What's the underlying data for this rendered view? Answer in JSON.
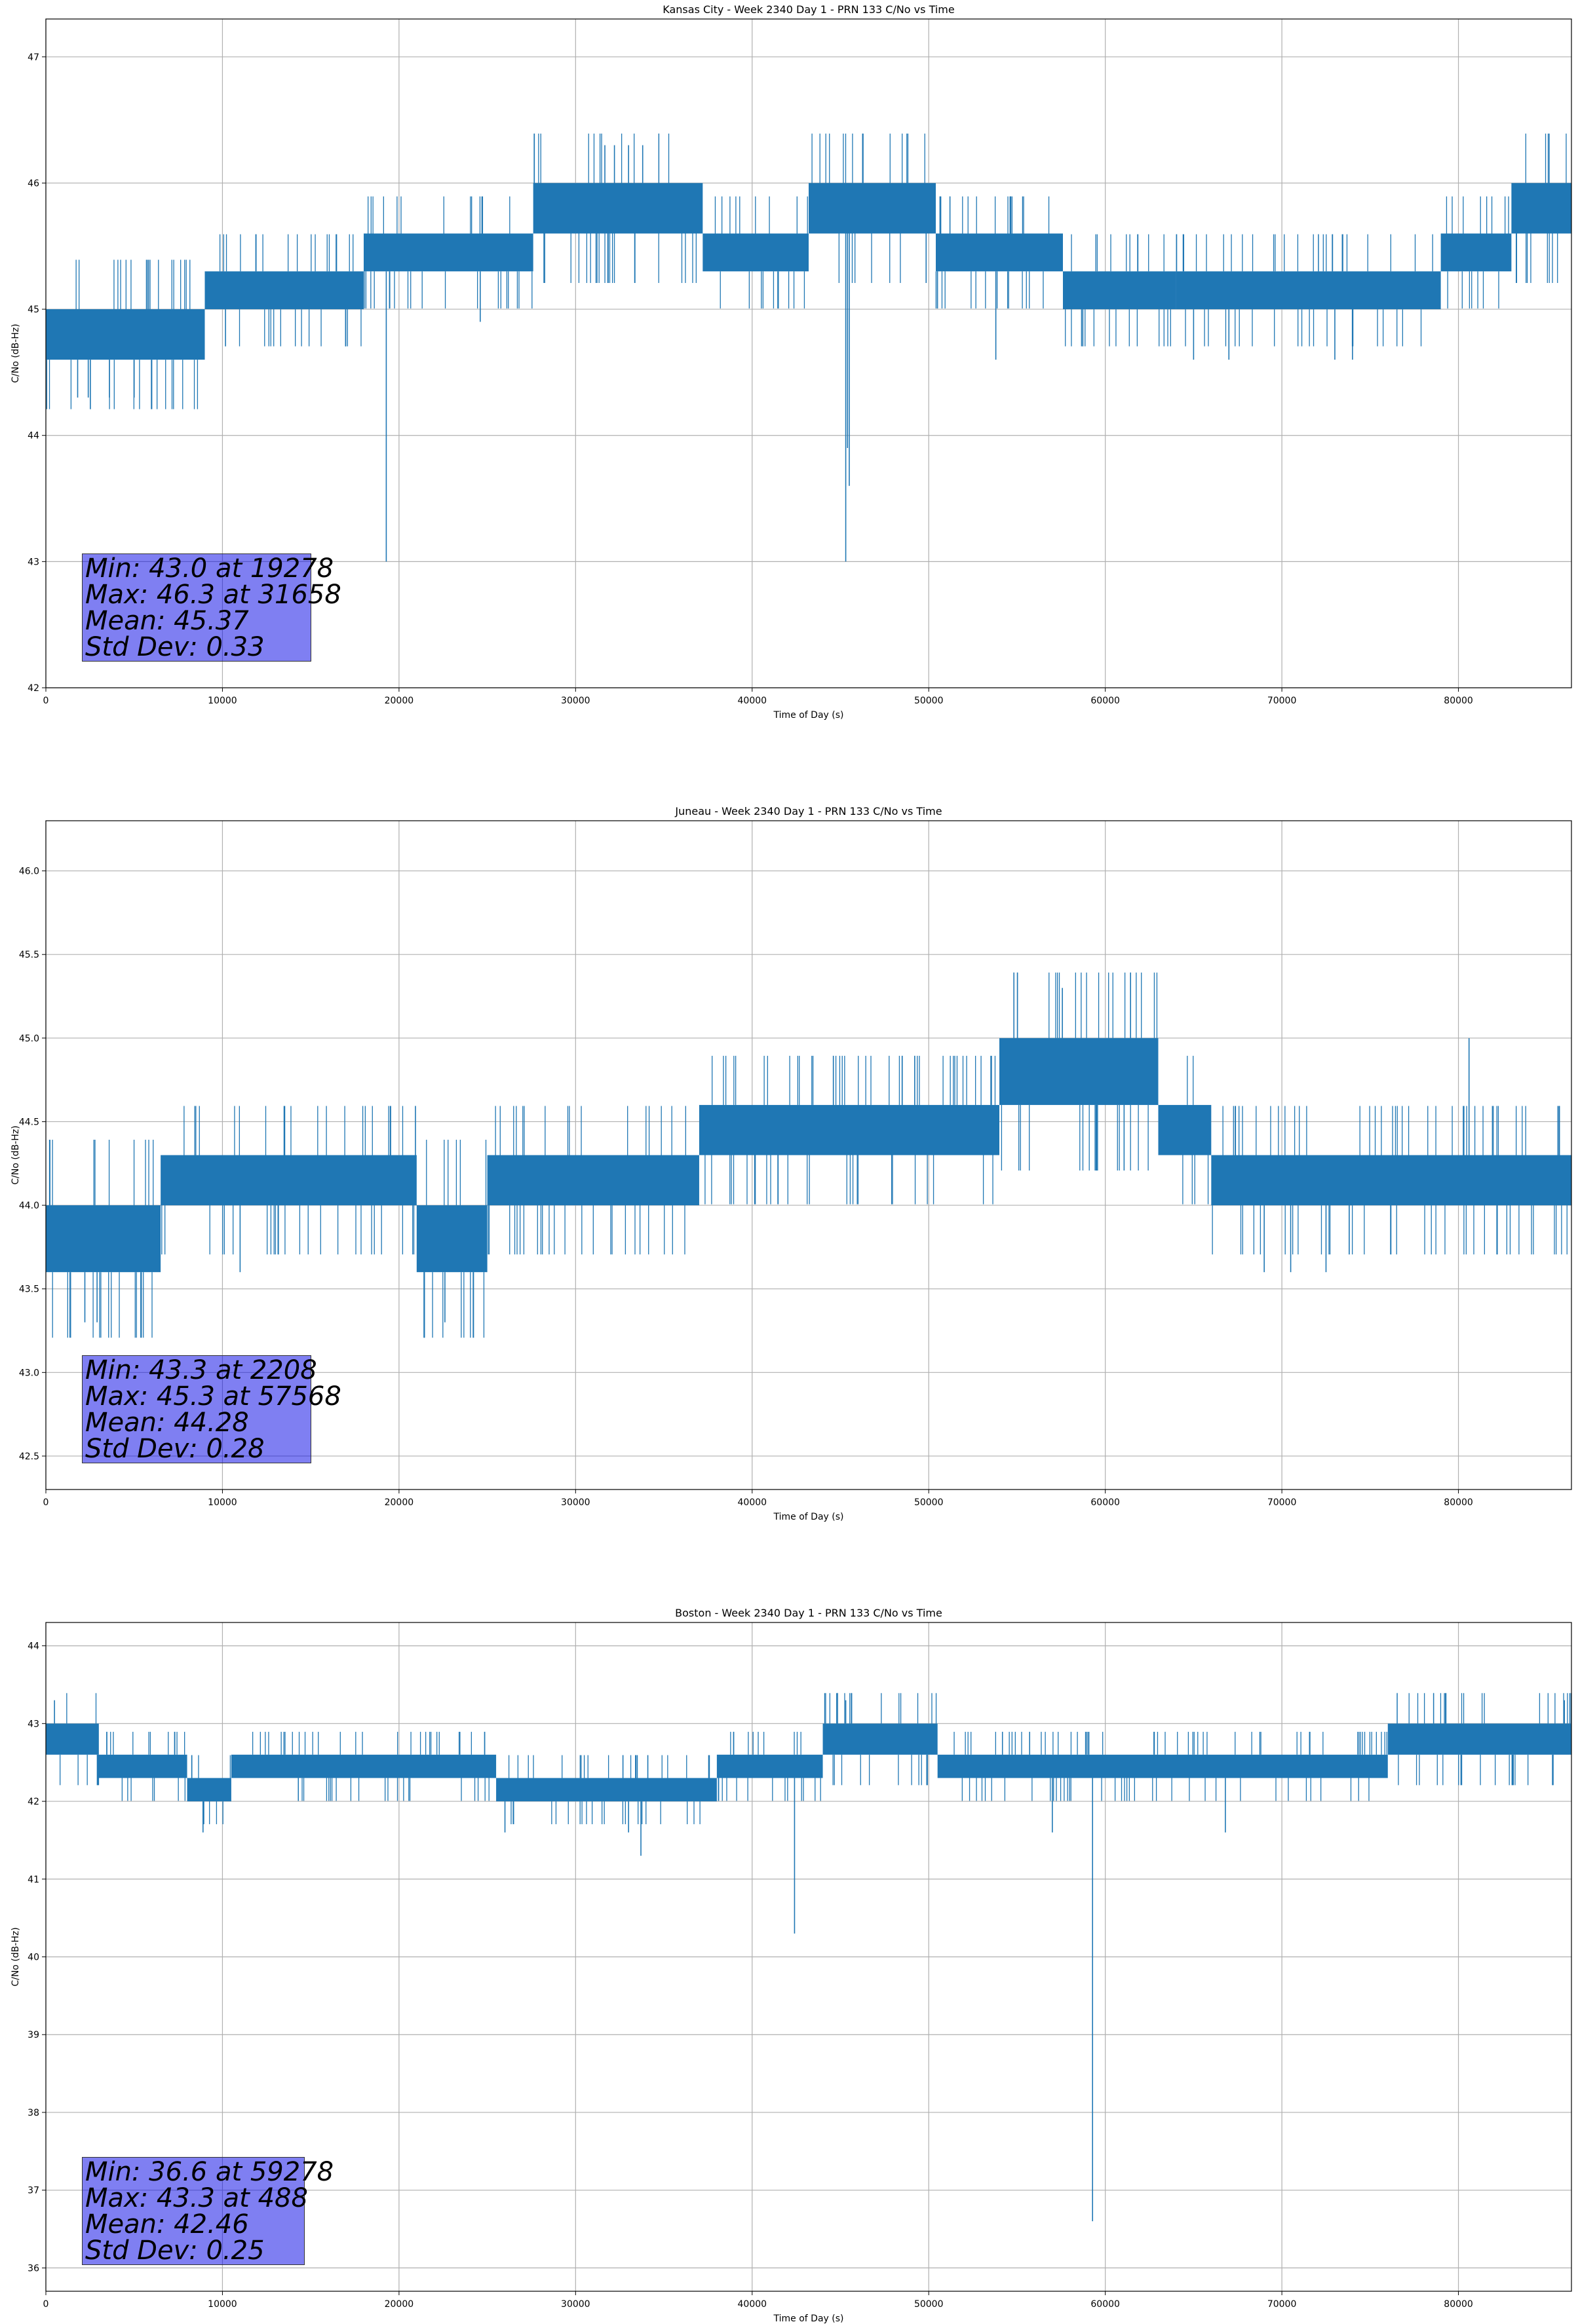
{
  "colors": {
    "series": "#1f77b4",
    "grid": "#b0b0b0",
    "stats_box": "#8080ff"
  },
  "chart_data": [
    {
      "type": "line",
      "title": "Kansas City - Week 2340 Day 1 - PRN 133 C/No vs Time",
      "xlabel": "Time of Day (s)",
      "ylabel": "C/No (dB-Hz)",
      "xlim": [
        0,
        86400
      ],
      "ylim": [
        42,
        47.3
      ],
      "xticks": [
        0,
        10000,
        20000,
        30000,
        40000,
        50000,
        60000,
        70000,
        80000
      ],
      "yticks": [
        42,
        43,
        44,
        45,
        46,
        47
      ],
      "ytick_format": "0",
      "grid": true,
      "series": [
        {
          "values_note": "",
          "bands": [
            {
              "x0": 0,
              "x1": 9000,
              "lo": 44.6,
              "hi": 45.0
            },
            {
              "x0": 9000,
              "x1": 18000,
              "lo": 45.0,
              "hi": 45.3
            },
            {
              "x0": 18000,
              "x1": 27600,
              "lo": 45.3,
              "hi": 45.6
            },
            {
              "x0": 27600,
              "x1": 37200,
              "lo": 45.6,
              "hi": 46.0
            },
            {
              "x0": 37200,
              "x1": 43200,
              "lo": 45.3,
              "hi": 45.6
            },
            {
              "x0": 43200,
              "x1": 50400,
              "lo": 45.6,
              "hi": 46.0
            },
            {
              "x0": 50400,
              "x1": 57600,
              "lo": 45.3,
              "hi": 45.6
            },
            {
              "x0": 57600,
              "x1": 64000,
              "lo": 45.0,
              "hi": 45.3
            },
            {
              "x0": 64000,
              "x1": 79000,
              "lo": 45.0,
              "hi": 45.3
            },
            {
              "x0": 79000,
              "x1": 83000,
              "lo": 45.3,
              "hi": 45.6
            },
            {
              "x0": 83000,
              "x1": 86400,
              "lo": 45.6,
              "hi": 46.0
            }
          ],
          "spikes": [
            {
              "x": 19278,
              "y": 43.0
            },
            {
              "x": 45300,
              "y": 43.0
            },
            {
              "x": 45500,
              "y": 43.6
            },
            {
              "x": 45400,
              "y": 43.9
            },
            {
              "x": 1800,
              "y": 44.3
            },
            {
              "x": 2400,
              "y": 44.3
            },
            {
              "x": 3600,
              "y": 44.3
            },
            {
              "x": 5000,
              "y": 44.3
            },
            {
              "x": 24600,
              "y": 44.9
            },
            {
              "x": 31658,
              "y": 46.3
            },
            {
              "x": 32200,
              "y": 46.3
            },
            {
              "x": 33000,
              "y": 46.3
            },
            {
              "x": 33800,
              "y": 46.3
            },
            {
              "x": 53800,
              "y": 44.6
            },
            {
              "x": 65000,
              "y": 44.6
            },
            {
              "x": 67000,
              "y": 44.6
            },
            {
              "x": 73000,
              "y": 44.6
            },
            {
              "x": 74000,
              "y": 44.6
            }
          ]
        }
      ],
      "stats": [
        "Min: 43.0 at 19278",
        "Max: 46.3 at 31658",
        "Mean: 45.37",
        "Std Dev: 0.33"
      ]
    },
    {
      "type": "line",
      "title": "Juneau - Week 2340 Day 1 - PRN 133 C/No vs Time",
      "xlabel": "Time of Day (s)",
      "ylabel": "C/No (dB-Hz)",
      "xlim": [
        0,
        86400
      ],
      "ylim": [
        42.3,
        46.3
      ],
      "xticks": [
        0,
        10000,
        20000,
        30000,
        40000,
        50000,
        60000,
        70000,
        80000
      ],
      "yticks": [
        42.5,
        43.0,
        43.5,
        44.0,
        44.5,
        45.0,
        45.5,
        46.0
      ],
      "ytick_format": "1",
      "grid": true,
      "series": [
        {
          "bands": [
            {
              "x0": 0,
              "x1": 6500,
              "lo": 43.6,
              "hi": 44.0
            },
            {
              "x0": 6500,
              "x1": 21000,
              "lo": 44.0,
              "hi": 44.3
            },
            {
              "x0": 21000,
              "x1": 25000,
              "lo": 43.6,
              "hi": 44.0
            },
            {
              "x0": 25000,
              "x1": 37000,
              "lo": 44.0,
              "hi": 44.3
            },
            {
              "x0": 37000,
              "x1": 54000,
              "lo": 44.3,
              "hi": 44.6
            },
            {
              "x0": 54000,
              "x1": 63000,
              "lo": 44.6,
              "hi": 45.0
            },
            {
              "x0": 63000,
              "x1": 66000,
              "lo": 44.3,
              "hi": 44.6
            },
            {
              "x0": 66000,
              "x1": 86400,
              "lo": 44.0,
              "hi": 44.3
            }
          ],
          "spikes": [
            {
              "x": 2208,
              "y": 43.3
            },
            {
              "x": 2900,
              "y": 43.3
            },
            {
              "x": 22600,
              "y": 43.3
            },
            {
              "x": 57568,
              "y": 45.3
            },
            {
              "x": 80600,
              "y": 45.0
            },
            {
              "x": 11000,
              "y": 43.6
            },
            {
              "x": 69000,
              "y": 43.6
            },
            {
              "x": 70500,
              "y": 43.6
            },
            {
              "x": 72500,
              "y": 43.6
            }
          ]
        }
      ],
      "stats": [
        "Min: 43.3 at 2208",
        "Max: 45.3 at 57568",
        "Mean: 44.28",
        "Std Dev: 0.28"
      ]
    },
    {
      "type": "line",
      "title": "Boston - Week 2340 Day 1 - PRN 133 C/No vs Time",
      "xlabel": "Time of Day (s)",
      "ylabel": "C/No (dB-Hz)",
      "xlim": [
        0,
        86400
      ],
      "ylim": [
        35.7,
        44.3
      ],
      "xticks": [
        0,
        10000,
        20000,
        30000,
        40000,
        50000,
        60000,
        70000,
        80000
      ],
      "yticks": [
        36,
        37,
        38,
        39,
        40,
        41,
        42,
        43,
        44
      ],
      "ytick_format": "0",
      "grid": true,
      "series": [
        {
          "bands": [
            {
              "x0": 0,
              "x1": 3000,
              "lo": 42.6,
              "hi": 43.0
            },
            {
              "x0": 3000,
              "x1": 8000,
              "lo": 42.3,
              "hi": 42.6
            },
            {
              "x0": 8000,
              "x1": 10500,
              "lo": 42.0,
              "hi": 42.3
            },
            {
              "x0": 10500,
              "x1": 25500,
              "lo": 42.3,
              "hi": 42.6
            },
            {
              "x0": 25500,
              "x1": 38000,
              "lo": 42.0,
              "hi": 42.3
            },
            {
              "x0": 38000,
              "x1": 44000,
              "lo": 42.3,
              "hi": 42.6
            },
            {
              "x0": 44000,
              "x1": 50500,
              "lo": 42.6,
              "hi": 43.0
            },
            {
              "x0": 50500,
              "x1": 76000,
              "lo": 42.3,
              "hi": 42.6
            },
            {
              "x0": 76000,
              "x1": 86400,
              "lo": 42.6,
              "hi": 43.0
            }
          ],
          "spikes": [
            {
              "x": 59278,
              "y": 36.6
            },
            {
              "x": 42400,
              "y": 40.3
            },
            {
              "x": 488,
              "y": 43.3
            },
            {
              "x": 45300,
              "y": 43.3
            },
            {
              "x": 86000,
              "y": 43.3
            },
            {
              "x": 8900,
              "y": 41.6
            },
            {
              "x": 26000,
              "y": 41.6
            },
            {
              "x": 33700,
              "y": 41.3
            },
            {
              "x": 33000,
              "y": 41.6
            },
            {
              "x": 57000,
              "y": 41.6
            },
            {
              "x": 66800,
              "y": 41.6
            }
          ]
        }
      ],
      "stats": [
        "Min: 36.6 at 59278",
        "Max: 43.3 at 488",
        "Mean: 42.46",
        "Std Dev: 0.25"
      ]
    }
  ]
}
